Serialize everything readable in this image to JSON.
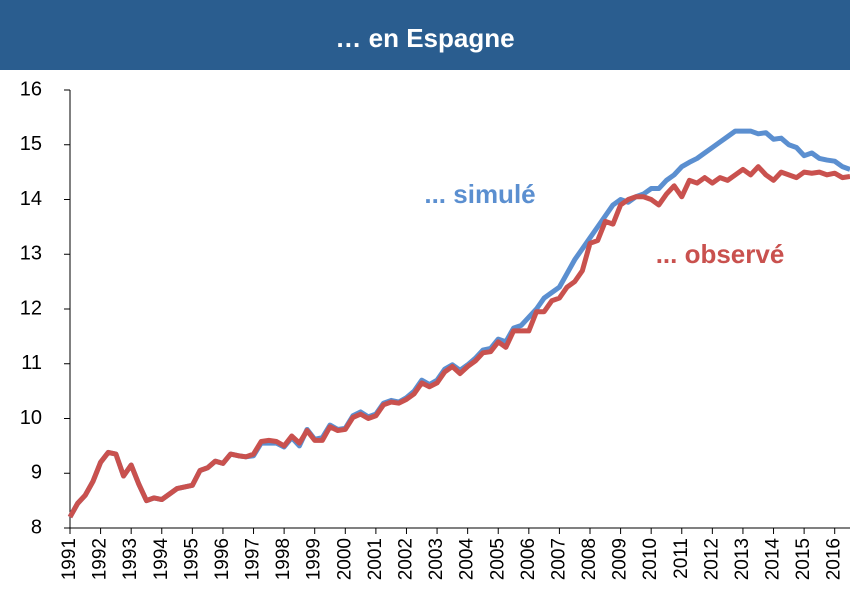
{
  "chart_data": {
    "type": "line",
    "title": "… en Espagne",
    "x": [
      1991,
      1991.25,
      1991.5,
      1991.75,
      1992,
      1992.25,
      1992.5,
      1992.75,
      1993,
      1993.25,
      1993.5,
      1993.75,
      1994,
      1994.25,
      1994.5,
      1994.75,
      1995,
      1995.25,
      1995.5,
      1995.75,
      1996,
      1996.25,
      1996.5,
      1996.75,
      1997,
      1997.25,
      1997.5,
      1997.75,
      1998,
      1998.25,
      1998.5,
      1998.75,
      1999,
      1999.25,
      1999.5,
      1999.75,
      2000,
      2000.25,
      2000.5,
      2000.75,
      2001,
      2001.25,
      2001.5,
      2001.75,
      2002,
      2002.25,
      2002.5,
      2002.75,
      2003,
      2003.25,
      2003.5,
      2003.75,
      2004,
      2004.25,
      2004.5,
      2004.75,
      2005,
      2005.25,
      2005.5,
      2005.75,
      2006,
      2006.25,
      2006.5,
      2006.75,
      2007,
      2007.25,
      2007.5,
      2007.75,
      2008,
      2008.25,
      2008.5,
      2008.75,
      2009,
      2009.25,
      2009.5,
      2009.75,
      2010,
      2010.25,
      2010.5,
      2010.75,
      2011,
      2011.25,
      2011.5,
      2011.75,
      2012,
      2012.25,
      2012.5,
      2012.75,
      2013,
      2013.25,
      2013.5,
      2013.75,
      2014,
      2014.25,
      2014.5,
      2014.75,
      2015,
      2015.25,
      2015.5,
      2015.75,
      2016,
      2016.25,
      2016.5
    ],
    "series": [
      {
        "name": "... simulé",
        "color": "#5b8fd0",
        "values": [
          8.2,
          8.45,
          8.6,
          8.85,
          9.2,
          9.38,
          9.35,
          8.95,
          9.15,
          8.8,
          8.5,
          8.55,
          8.52,
          8.62,
          8.72,
          8.75,
          8.78,
          9.05,
          9.1,
          9.22,
          9.18,
          9.35,
          9.32,
          9.3,
          9.32,
          9.55,
          9.55,
          9.55,
          9.48,
          9.65,
          9.5,
          9.8,
          9.62,
          9.65,
          9.88,
          9.8,
          9.82,
          10.05,
          10.12,
          10.03,
          10.08,
          10.28,
          10.33,
          10.3,
          10.38,
          10.5,
          10.7,
          10.62,
          10.7,
          10.9,
          10.98,
          10.88,
          10.98,
          11.1,
          11.25,
          11.28,
          11.45,
          11.4,
          11.65,
          11.7,
          11.85,
          12.0,
          12.2,
          12.3,
          12.4,
          12.65,
          12.9,
          13.1,
          13.3,
          13.5,
          13.7,
          13.9,
          14.0,
          13.95,
          14.05,
          14.1,
          14.2,
          14.2,
          14.35,
          14.45,
          14.6,
          14.68,
          14.75,
          14.85,
          14.95,
          15.05,
          15.15,
          15.25,
          15.25,
          15.25,
          15.2,
          15.22,
          15.1,
          15.12,
          15.0,
          14.95,
          14.8,
          14.85,
          14.75,
          14.72,
          14.7,
          14.6,
          14.55
        ]
      },
      {
        "name": "... observé",
        "color": "#c9514e",
        "values": [
          8.2,
          8.45,
          8.6,
          8.85,
          9.2,
          9.38,
          9.35,
          8.95,
          9.15,
          8.8,
          8.5,
          8.55,
          8.52,
          8.62,
          8.72,
          8.75,
          8.78,
          9.05,
          9.1,
          9.22,
          9.18,
          9.35,
          9.32,
          9.3,
          9.35,
          9.58,
          9.6,
          9.58,
          9.5,
          9.68,
          9.55,
          9.78,
          9.6,
          9.6,
          9.85,
          9.78,
          9.8,
          10.02,
          10.08,
          10.0,
          10.05,
          10.25,
          10.3,
          10.28,
          10.35,
          10.45,
          10.65,
          10.58,
          10.65,
          10.85,
          10.95,
          10.82,
          10.95,
          11.05,
          11.2,
          11.22,
          11.4,
          11.3,
          11.6,
          11.6,
          11.6,
          11.95,
          11.95,
          12.15,
          12.2,
          12.4,
          12.5,
          12.7,
          13.2,
          13.25,
          13.6,
          13.55,
          13.9,
          14.0,
          14.05,
          14.05,
          14.0,
          13.9,
          14.1,
          14.25,
          14.05,
          14.35,
          14.3,
          14.4,
          14.3,
          14.4,
          14.35,
          14.45,
          14.55,
          14.45,
          14.6,
          14.45,
          14.35,
          14.5,
          14.45,
          14.4,
          14.5,
          14.48,
          14.5,
          14.45,
          14.48,
          14.4,
          14.42
        ]
      }
    ],
    "xlim": [
      1991,
      2016.5
    ],
    "xticks": [
      1991,
      1992,
      1993,
      1994,
      1995,
      1996,
      1997,
      1998,
      1999,
      2000,
      2001,
      2002,
      2003,
      2004,
      2005,
      2006,
      2007,
      2008,
      2009,
      2010,
      2011,
      2012,
      2013,
      2014,
      2015,
      2016
    ],
    "ylim": [
      8,
      16
    ],
    "yticks": [
      8,
      9,
      10,
      11,
      12,
      13,
      14,
      15,
      16
    ],
    "grid": false
  }
}
